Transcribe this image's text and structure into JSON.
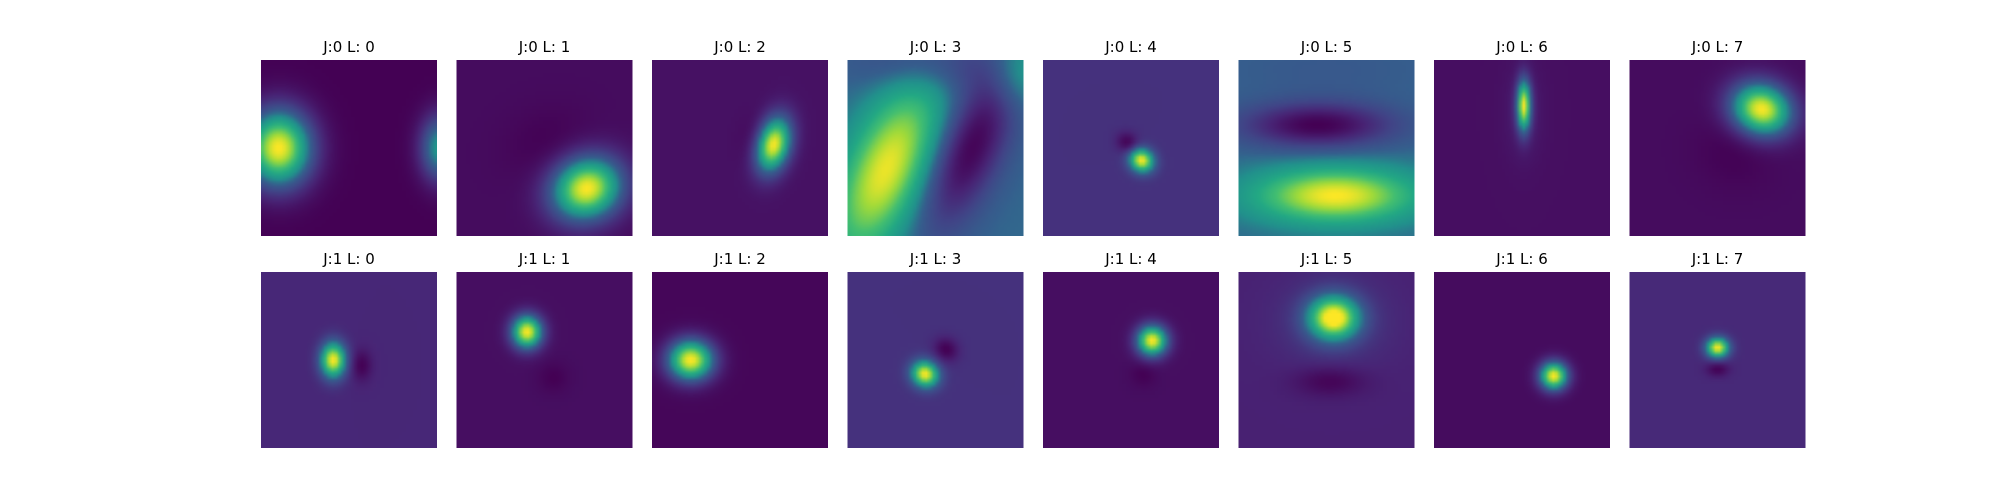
{
  "chart_data": {
    "type": "heatmap",
    "grid": false,
    "layout": "2 rows x 8 columns of image panels, no axes",
    "colormap": "viridis",
    "colors": {
      "viridis_low": "#440154",
      "viridis_mid": "#21918c",
      "viridis_high": "#fde725"
    },
    "panels": [
      {
        "title": "J:0 L: 0",
        "background": 0.0,
        "blobs": [
          {
            "cx": 0.1,
            "cy": 0.5,
            "sx": 0.13,
            "sy": 0.15,
            "amp": 1.0,
            "rot": 0
          },
          {
            "cx": 1.02,
            "cy": 0.5,
            "sx": 0.08,
            "sy": 0.13,
            "amp": 0.55,
            "rot": 0
          }
        ]
      },
      {
        "title": "J:0 L: 1",
        "background": 0.04,
        "blobs": [
          {
            "cx": 0.74,
            "cy": 0.73,
            "sx": 0.14,
            "sy": 0.12,
            "amp": 0.96,
            "rot": -0.4
          },
          {
            "cx": 0.52,
            "cy": 0.48,
            "sx": 0.17,
            "sy": 0.14,
            "amp": -0.04,
            "rot": -0.4
          }
        ]
      },
      {
        "title": "J:0 L: 2",
        "background": 0.06,
        "blobs": [
          {
            "cx": 0.69,
            "cy": 0.48,
            "sx": 0.065,
            "sy": 0.11,
            "amp": 0.94,
            "rot": 0.25
          },
          {
            "cx": 0.58,
            "cy": 0.44,
            "sx": 0.06,
            "sy": 0.1,
            "amp": -0.05,
            "rot": 0.25
          }
        ]
      },
      {
        "title": "J:0 L: 3",
        "background": 0.4,
        "blobs": [
          {
            "cx": 0.22,
            "cy": 0.62,
            "sx": 0.16,
            "sy": 0.38,
            "amp": 0.58,
            "rot": 0.42
          },
          {
            "cx": 0.7,
            "cy": 0.5,
            "sx": 0.13,
            "sy": 0.34,
            "amp": -0.4,
            "rot": 0.42
          },
          {
            "cx": 0.5,
            "cy": 0.02,
            "sx": 0.3,
            "sy": 0.12,
            "amp": -0.18,
            "rot": 0
          },
          {
            "cx": 0.97,
            "cy": 0.06,
            "sx": 0.12,
            "sy": 0.14,
            "amp": 0.25,
            "rot": 0
          }
        ]
      },
      {
        "title": "J:0 L: 4",
        "background": 0.18,
        "blobs": [
          {
            "cx": 0.56,
            "cy": 0.57,
            "sx": 0.05,
            "sy": 0.045,
            "amp": 0.82,
            "rot": 0.6
          },
          {
            "cx": 0.48,
            "cy": 0.47,
            "sx": 0.045,
            "sy": 0.04,
            "amp": -0.18,
            "rot": 0.6
          }
        ]
      },
      {
        "title": "J:0 L: 5",
        "background": 0.4,
        "blobs": [
          {
            "cx": 0.55,
            "cy": 0.77,
            "sx": 0.32,
            "sy": 0.11,
            "amp": 0.6,
            "rot": 0
          },
          {
            "cx": 0.45,
            "cy": 0.37,
            "sx": 0.3,
            "sy": 0.09,
            "amp": -0.4,
            "rot": 0
          },
          {
            "cx": 0.5,
            "cy": 0.05,
            "sx": 0.45,
            "sy": 0.12,
            "amp": -0.05,
            "rot": 0
          }
        ]
      },
      {
        "title": "J:0 L: 6",
        "background": 0.05,
        "blobs": [
          {
            "cx": 0.51,
            "cy": 0.26,
            "sx": 0.028,
            "sy": 0.1,
            "amp": 0.9,
            "rot": 0
          },
          {
            "cx": 0.51,
            "cy": 0.3,
            "sx": 0.08,
            "sy": 0.2,
            "amp": 0.05,
            "rot": 0
          }
        ]
      },
      {
        "title": "J:0 L: 7",
        "background": 0.04,
        "blobs": [
          {
            "cx": 0.75,
            "cy": 0.28,
            "sx": 0.12,
            "sy": 0.1,
            "amp": 0.96,
            "rot": 0.35
          },
          {
            "cx": 0.6,
            "cy": 0.52,
            "sx": 0.15,
            "sy": 0.14,
            "amp": -0.04,
            "rot": 0.35
          }
        ]
      },
      {
        "title": "J:1 L: 0",
        "background": 0.14,
        "blobs": [
          {
            "cx": 0.41,
            "cy": 0.5,
            "sx": 0.05,
            "sy": 0.07,
            "amp": 0.86,
            "rot": 0
          },
          {
            "cx": 0.57,
            "cy": 0.53,
            "sx": 0.04,
            "sy": 0.06,
            "amp": -0.14,
            "rot": 0
          }
        ]
      },
      {
        "title": "J:1 L: 1",
        "background": 0.05,
        "blobs": [
          {
            "cx": 0.4,
            "cy": 0.34,
            "sx": 0.06,
            "sy": 0.065,
            "amp": 0.95,
            "rot": 0
          },
          {
            "cx": 0.55,
            "cy": 0.6,
            "sx": 0.06,
            "sy": 0.06,
            "amp": -0.05,
            "rot": 0
          }
        ]
      },
      {
        "title": "J:1 L: 2",
        "background": 0.02,
        "blobs": [
          {
            "cx": 0.22,
            "cy": 0.5,
            "sx": 0.09,
            "sy": 0.08,
            "amp": 0.98,
            "rot": 0
          }
        ]
      },
      {
        "title": "J:1 L: 3",
        "background": 0.18,
        "blobs": [
          {
            "cx": 0.44,
            "cy": 0.58,
            "sx": 0.055,
            "sy": 0.05,
            "amp": 0.82,
            "rot": 0.6
          },
          {
            "cx": 0.56,
            "cy": 0.44,
            "sx": 0.05,
            "sy": 0.045,
            "amp": -0.18,
            "rot": 0.6
          }
        ]
      },
      {
        "title": "J:1 L: 4",
        "background": 0.05,
        "blobs": [
          {
            "cx": 0.62,
            "cy": 0.39,
            "sx": 0.06,
            "sy": 0.06,
            "amp": 0.95,
            "rot": 0
          },
          {
            "cx": 0.57,
            "cy": 0.58,
            "sx": 0.05,
            "sy": 0.05,
            "amp": -0.05,
            "rot": 0
          }
        ]
      },
      {
        "title": "J:1 L: 5",
        "background": 0.12,
        "blobs": [
          {
            "cx": 0.54,
            "cy": 0.26,
            "sx": 0.1,
            "sy": 0.085,
            "amp": 0.88,
            "rot": 0
          },
          {
            "cx": 0.54,
            "cy": 0.28,
            "sx": 0.22,
            "sy": 0.18,
            "amp": 0.1,
            "rot": 0
          },
          {
            "cx": 0.52,
            "cy": 0.62,
            "sx": 0.14,
            "sy": 0.06,
            "amp": -0.12,
            "rot": 0
          }
        ]
      },
      {
        "title": "J:1 L: 6",
        "background": 0.04,
        "blobs": [
          {
            "cx": 0.68,
            "cy": 0.59,
            "sx": 0.055,
            "sy": 0.055,
            "amp": 0.96,
            "rot": 0
          }
        ]
      },
      {
        "title": "J:1 L: 7",
        "background": 0.15,
        "blobs": [
          {
            "cx": 0.5,
            "cy": 0.43,
            "sx": 0.045,
            "sy": 0.04,
            "amp": 0.85,
            "rot": 0
          },
          {
            "cx": 0.5,
            "cy": 0.55,
            "sx": 0.045,
            "sy": 0.03,
            "amp": -0.15,
            "rot": 0
          }
        ]
      }
    ]
  }
}
